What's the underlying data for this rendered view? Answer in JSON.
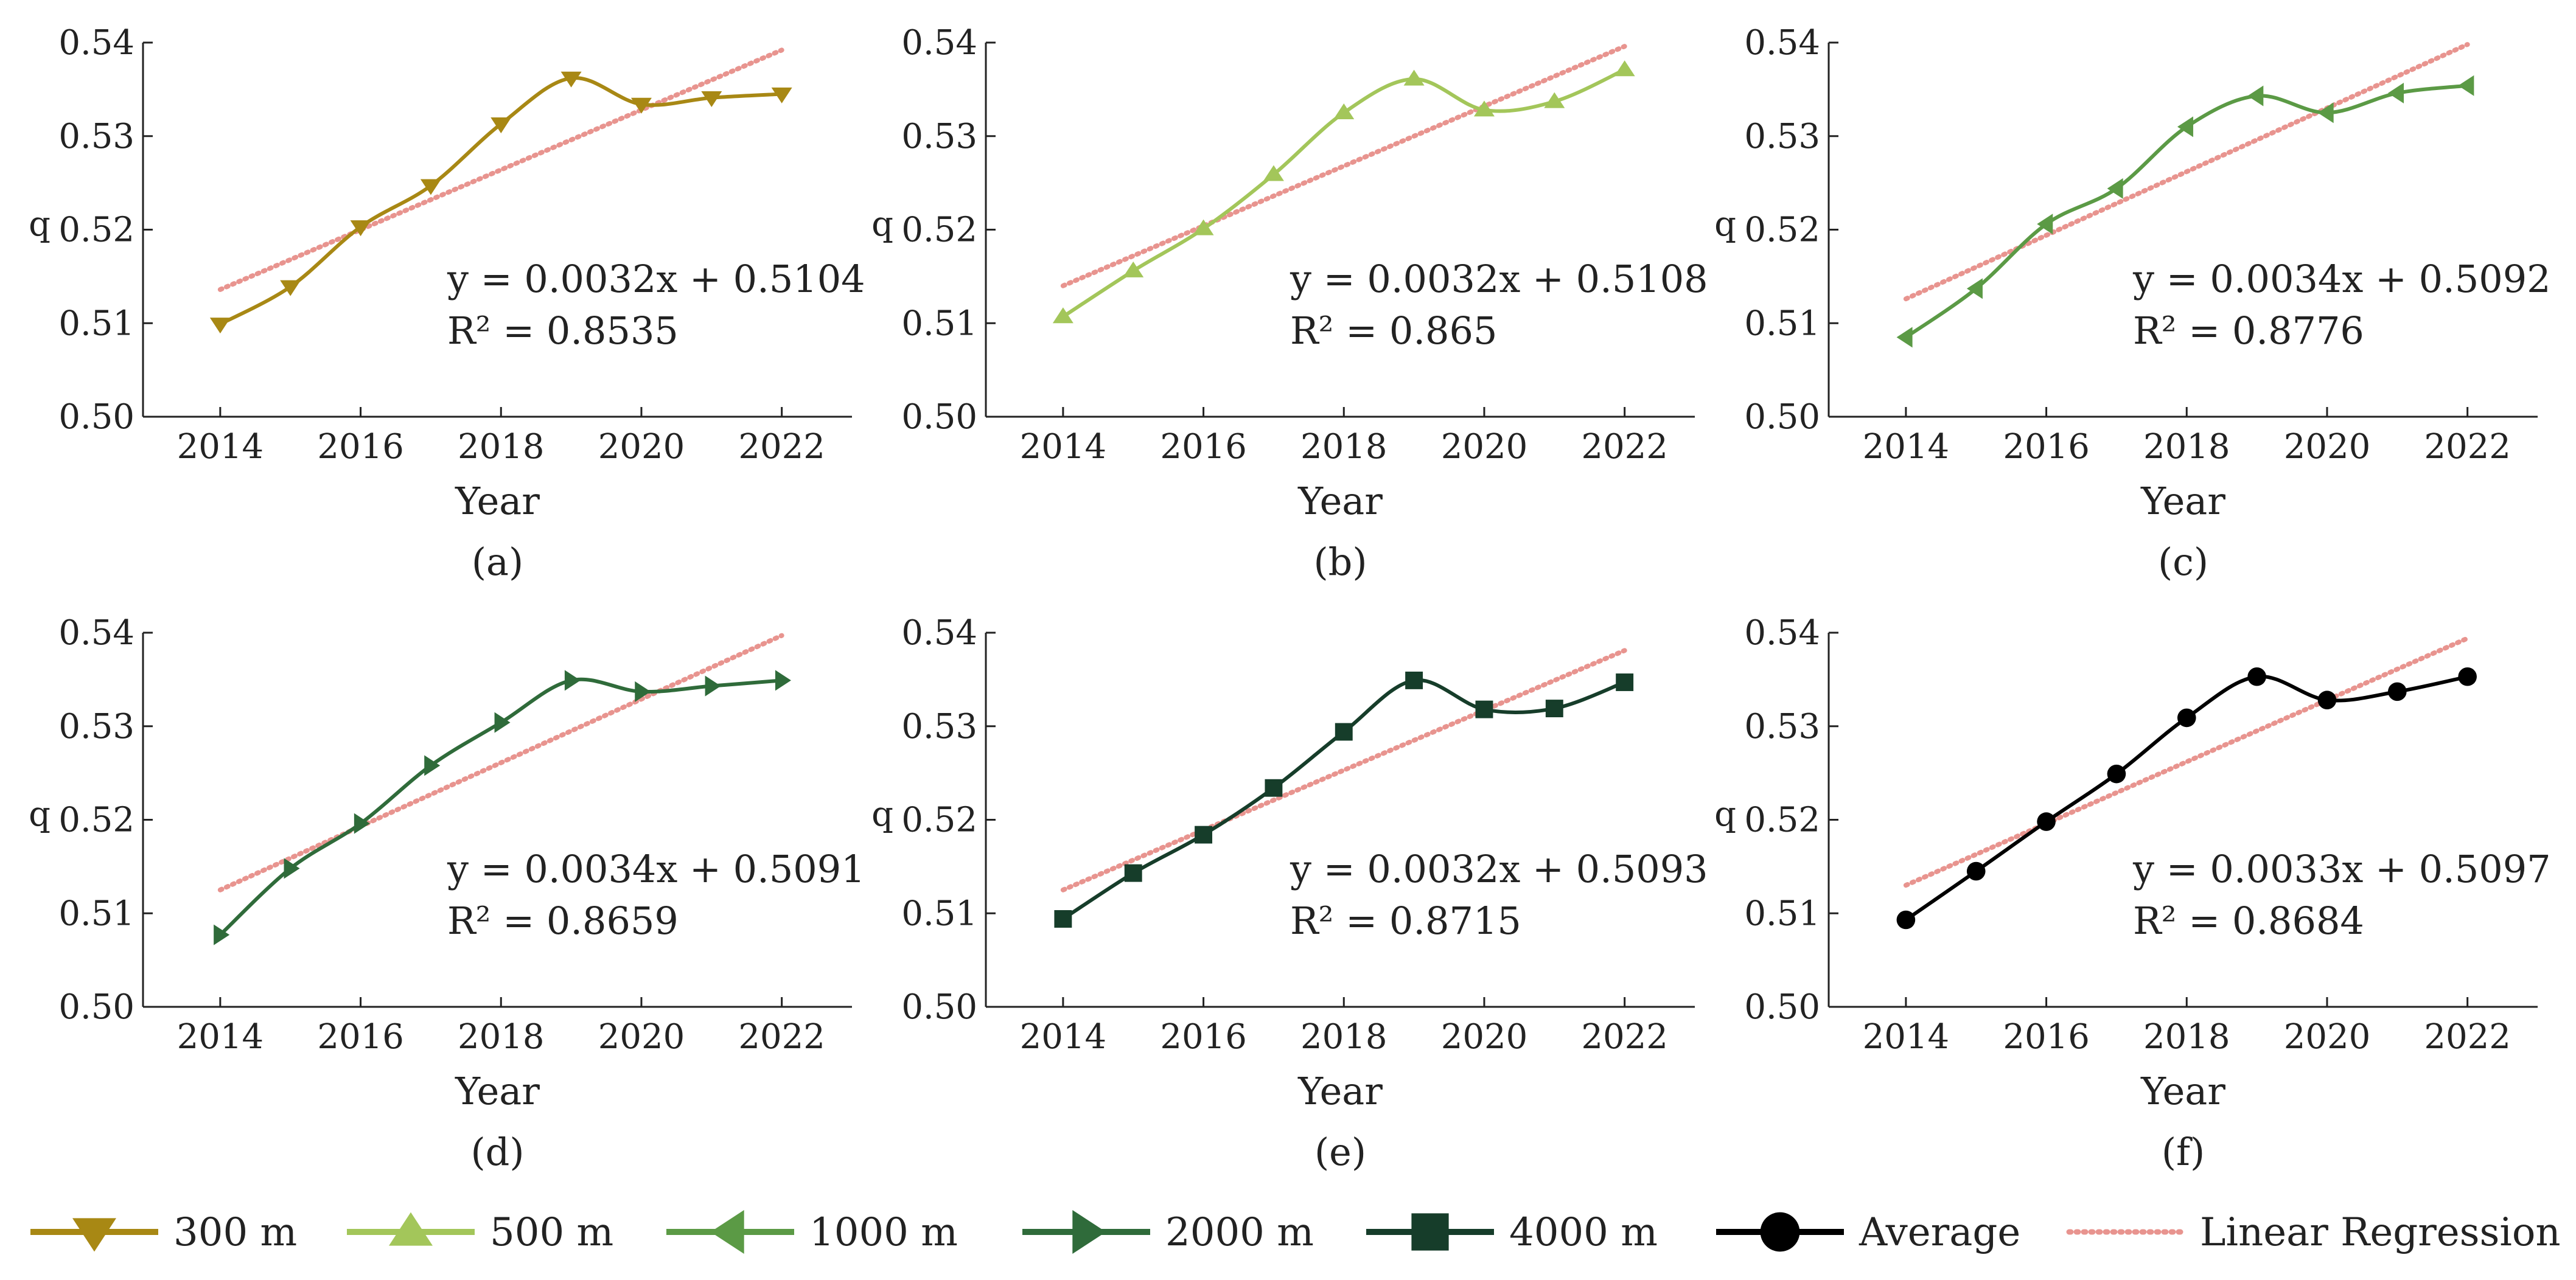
{
  "figure": {
    "legend": [
      {
        "label": "300 m",
        "color": "#a88814",
        "marker": "triangle-down"
      },
      {
        "label": "500 m",
        "color": "#a3c65a",
        "marker": "triangle-up"
      },
      {
        "label": "1000 m",
        "color": "#5b9a45",
        "marker": "triangle-left"
      },
      {
        "label": "2000 m",
        "color": "#2f6b3a",
        "marker": "triangle-right"
      },
      {
        "label": "4000 m",
        "color": "#163d2a",
        "marker": "square"
      },
      {
        "label": "Average",
        "color": "#000000",
        "marker": "circle"
      },
      {
        "label": "Linear Regression",
        "color": "#e8948f",
        "marker": "dotted-line"
      }
    ]
  },
  "chart_data": [
    {
      "type": "line",
      "panel_label": "(a)",
      "series_name": "300 m",
      "color": "#a88814",
      "marker": "triangle-down",
      "x": [
        2014,
        2015,
        2016,
        2017,
        2018,
        2019,
        2020,
        2021,
        2022
      ],
      "y": [
        0.5099,
        0.5139,
        0.5203,
        0.5247,
        0.5313,
        0.5362,
        0.5334,
        0.5341,
        0.5345
      ],
      "regression": {
        "equation": "y = 0.0032x + 0.5104",
        "r2": "R² = 0.8535",
        "slope": 0.0032,
        "intercept": 0.5104
      },
      "xlabel": "Year",
      "ylabel": "q",
      "xlim": [
        2012.9,
        2023.0
      ],
      "ylim": [
        0.5,
        0.54
      ],
      "xticks": [
        "2014",
        "2016",
        "2018",
        "2020",
        "2022"
      ],
      "yticks": [
        "0.50",
        "0.51",
        "0.52",
        "0.53",
        "0.54"
      ]
    },
    {
      "type": "line",
      "panel_label": "(b)",
      "series_name": "500 m",
      "color": "#a3c65a",
      "marker": "triangle-up",
      "x": [
        2014,
        2015,
        2016,
        2017,
        2018,
        2019,
        2020,
        2021,
        2022
      ],
      "y": [
        0.5107,
        0.5156,
        0.5201,
        0.5259,
        0.5325,
        0.5361,
        0.5328,
        0.5337,
        0.5371
      ],
      "regression": {
        "equation": "y = 0.0032x + 0.5108",
        "r2": "R² = 0.865",
        "slope": 0.0032,
        "intercept": 0.5108
      },
      "xlabel": "Year",
      "ylabel": "q",
      "xlim": [
        2012.9,
        2023.0
      ],
      "ylim": [
        0.5,
        0.54
      ],
      "xticks": [
        "2014",
        "2016",
        "2018",
        "2020",
        "2022"
      ],
      "yticks": [
        "0.50",
        "0.51",
        "0.52",
        "0.53",
        "0.54"
      ]
    },
    {
      "type": "line",
      "panel_label": "(c)",
      "series_name": "1000 m",
      "color": "#5b9a45",
      "marker": "triangle-left",
      "x": [
        2014,
        2015,
        2016,
        2017,
        2018,
        2019,
        2020,
        2021,
        2022
      ],
      "y": [
        0.5085,
        0.5137,
        0.5206,
        0.5244,
        0.531,
        0.5343,
        0.5325,
        0.5346,
        0.5354
      ],
      "regression": {
        "equation": "y = 0.0034x + 0.5092",
        "r2": "R² = 0.8776",
        "slope": 0.0034,
        "intercept": 0.5092
      },
      "xlabel": "Year",
      "ylabel": "q",
      "xlim": [
        2012.9,
        2023.0
      ],
      "ylim": [
        0.5,
        0.54
      ],
      "xticks": [
        "2014",
        "2016",
        "2018",
        "2020",
        "2022"
      ],
      "yticks": [
        "0.50",
        "0.51",
        "0.52",
        "0.53",
        "0.54"
      ]
    },
    {
      "type": "line",
      "panel_label": "(d)",
      "series_name": "2000 m",
      "color": "#2f6b3a",
      "marker": "triangle-right",
      "x": [
        2014,
        2015,
        2016,
        2017,
        2018,
        2019,
        2020,
        2021,
        2022
      ],
      "y": [
        0.5077,
        0.5148,
        0.5196,
        0.5258,
        0.5304,
        0.5349,
        0.5337,
        0.5343,
        0.5349
      ],
      "regression": {
        "equation": "y = 0.0034x + 0.5091",
        "r2": "R² = 0.8659",
        "slope": 0.0034,
        "intercept": 0.5091
      },
      "xlabel": "Year",
      "ylabel": "q",
      "xlim": [
        2012.9,
        2023.0
      ],
      "ylim": [
        0.5,
        0.54
      ],
      "xticks": [
        "2014",
        "2016",
        "2018",
        "2020",
        "2022"
      ],
      "yticks": [
        "0.50",
        "0.51",
        "0.52",
        "0.53",
        "0.54"
      ]
    },
    {
      "type": "line",
      "panel_label": "(e)",
      "series_name": "4000 m",
      "color": "#163d2a",
      "marker": "square",
      "x": [
        2014,
        2015,
        2016,
        2017,
        2018,
        2019,
        2020,
        2021,
        2022
      ],
      "y": [
        0.5094,
        0.5143,
        0.5184,
        0.5234,
        0.5294,
        0.5349,
        0.5318,
        0.5319,
        0.5347
      ],
      "regression": {
        "equation": "y = 0.0032x + 0.5093",
        "r2": "R² = 0.8715",
        "slope": 0.0032,
        "intercept": 0.5093
      },
      "xlabel": "Year",
      "ylabel": "q",
      "xlim": [
        2012.9,
        2023.0
      ],
      "ylim": [
        0.5,
        0.54
      ],
      "xticks": [
        "2014",
        "2016",
        "2018",
        "2020",
        "2022"
      ],
      "yticks": [
        "0.50",
        "0.51",
        "0.52",
        "0.53",
        "0.54"
      ]
    },
    {
      "type": "line",
      "panel_label": "(f)",
      "series_name": "Average",
      "color": "#000000",
      "marker": "circle",
      "x": [
        2014,
        2015,
        2016,
        2017,
        2018,
        2019,
        2020,
        2021,
        2022
      ],
      "y": [
        0.5093,
        0.5145,
        0.5198,
        0.5249,
        0.5309,
        0.5353,
        0.5328,
        0.5337,
        0.5353
      ],
      "regression": {
        "equation": "y = 0.0033x + 0.5097",
        "r2": "R² = 0.8684",
        "slope": 0.0033,
        "intercept": 0.5097
      },
      "xlabel": "Year",
      "ylabel": "q",
      "xlim": [
        2012.9,
        2023.0
      ],
      "ylim": [
        0.5,
        0.54
      ],
      "xticks": [
        "2014",
        "2016",
        "2018",
        "2020",
        "2022"
      ],
      "yticks": [
        "0.50",
        "0.51",
        "0.52",
        "0.53",
        "0.54"
      ]
    }
  ]
}
